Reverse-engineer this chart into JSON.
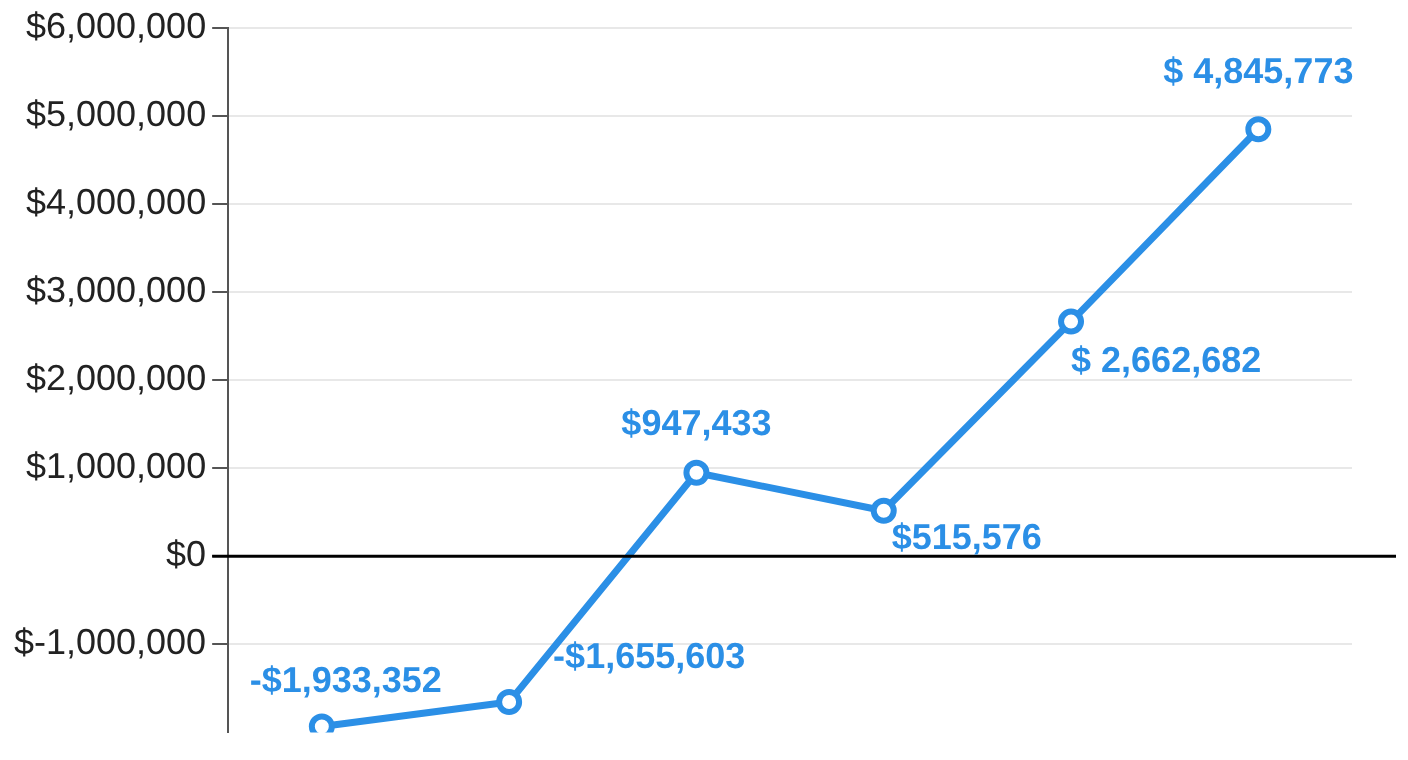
{
  "chart_data": {
    "type": "line",
    "categories": [
      null,
      null,
      null,
      null,
      null,
      null
    ],
    "series": [
      {
        "color": "#2b8fe6",
        "values": [
          -1933352,
          -1655603,
          947433,
          515576,
          2662682,
          4845773
        ],
        "value_labels": [
          "-$1,933,352",
          "-$1,655,603",
          "$947,433",
          "$515,576",
          "$ 2,662,682",
          "$ 4,845,773"
        ]
      }
    ],
    "ylim": [
      -2000000,
      6000000
    ],
    "yticks": [
      {
        "value": -1000000,
        "label": "$-1,000,000"
      },
      {
        "value": 0,
        "label": "$0"
      },
      {
        "value": 1000000,
        "label": "$1,000,000"
      },
      {
        "value": 2000000,
        "label": "$2,000,000"
      },
      {
        "value": 3000000,
        "label": "$3,000,000"
      },
      {
        "value": 4000000,
        "label": "$4,000,000"
      },
      {
        "value": 5000000,
        "label": "$5,000,000"
      },
      {
        "value": 6000000,
        "label": "$6,000,000"
      }
    ],
    "ref_lines": [
      {
        "axis": "y",
        "value": 0,
        "color": "#000000"
      }
    ],
    "grid": "y",
    "legend": false,
    "tick_labels": "y",
    "marker": "circle",
    "line_style": "solid"
  }
}
